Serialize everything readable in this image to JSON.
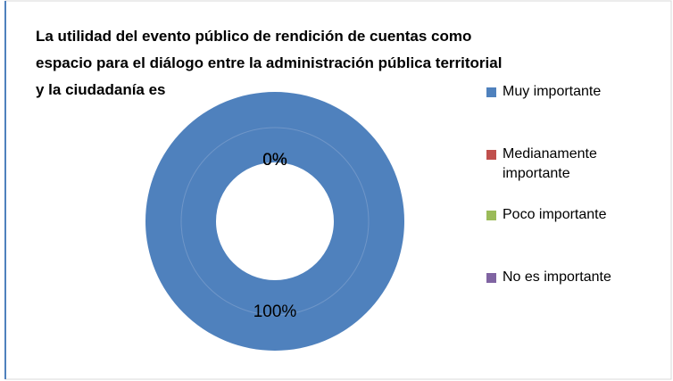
{
  "chart_data": {
    "type": "doughnut",
    "title": "La utilidad del evento público de rendición de cuentas como espacio para el diálogo entre la  administración pública territorial y la ciudadanía es",
    "categories": [
      "Muy importante",
      "Medianamente importante",
      "Poco importante",
      "No es importante"
    ],
    "values": [
      100,
      0,
      0,
      0
    ],
    "value_labels": [
      "100%",
      "0%",
      "0%",
      "0%"
    ],
    "colors": [
      "#4f81bd",
      "#c0504d",
      "#9bbb59",
      "#8064a2"
    ],
    "legend": "right"
  }
}
